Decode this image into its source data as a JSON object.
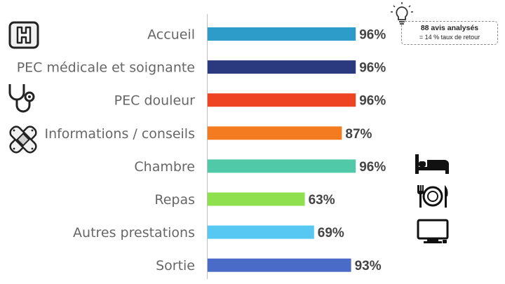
{
  "chart_data": {
    "type": "bar",
    "orientation": "horizontal",
    "categories": [
      "Accueil",
      "PEC médicale et soignante",
      "PEC douleur",
      "Informations / conseils",
      "Chambre",
      "Repas",
      "Autres prestations",
      "Sortie"
    ],
    "values": [
      96,
      96,
      96,
      87,
      96,
      63,
      69,
      93
    ],
    "value_labels": [
      "96%",
      "96%",
      "96%",
      "87%",
      "96%",
      "63%",
      "69%",
      "93%"
    ],
    "colors": [
      "#2e9cc9",
      "#2b3a7e",
      "#ef4423",
      "#f47b20",
      "#4fc9a8",
      "#8fe04e",
      "#57c8f2",
      "#4a6bc8"
    ],
    "xlim": [
      0,
      100
    ],
    "title": "",
    "xlabel": "",
    "ylabel": "",
    "grid": false,
    "legend": "none"
  },
  "note": {
    "line1": "88 avis analysés",
    "line2": "= 14 % taux de retour"
  },
  "icons": {
    "hospital": "hospital-sign-icon",
    "stethoscope": "stethoscope-icon",
    "bandage": "bandage-icon",
    "bulb": "lightbulb-icon",
    "bed": "bed-icon",
    "cutlery": "cutlery-plate-icon",
    "tv": "tv-icon"
  }
}
